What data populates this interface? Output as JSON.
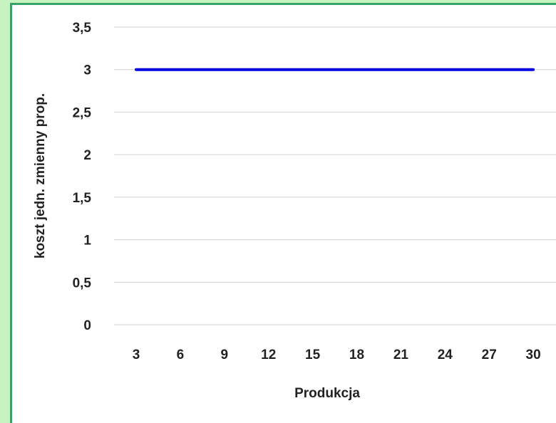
{
  "chart_data": {
    "type": "line",
    "title": "",
    "xlabel": "Produkcja",
    "ylabel": "koszt jedn. zmienny prop.",
    "categories": [
      "3",
      "6",
      "9",
      "12",
      "15",
      "18",
      "21",
      "24",
      "27",
      "30"
    ],
    "series": [
      {
        "values": [
          3,
          3,
          3,
          3,
          3,
          3,
          3,
          3,
          3,
          3
        ],
        "color": "#0000e0"
      }
    ],
    "yticks": [
      "0",
      "0,5",
      "1",
      "1,5",
      "2",
      "2,5",
      "3",
      "3,5"
    ],
    "ylim": [
      0,
      3.5
    ],
    "grid": true,
    "legend": "none",
    "colors": {
      "background_outer": "#c6f3bf",
      "border": "#38a368",
      "gridline": "#d0d0d0",
      "line": "#0000e0"
    }
  }
}
